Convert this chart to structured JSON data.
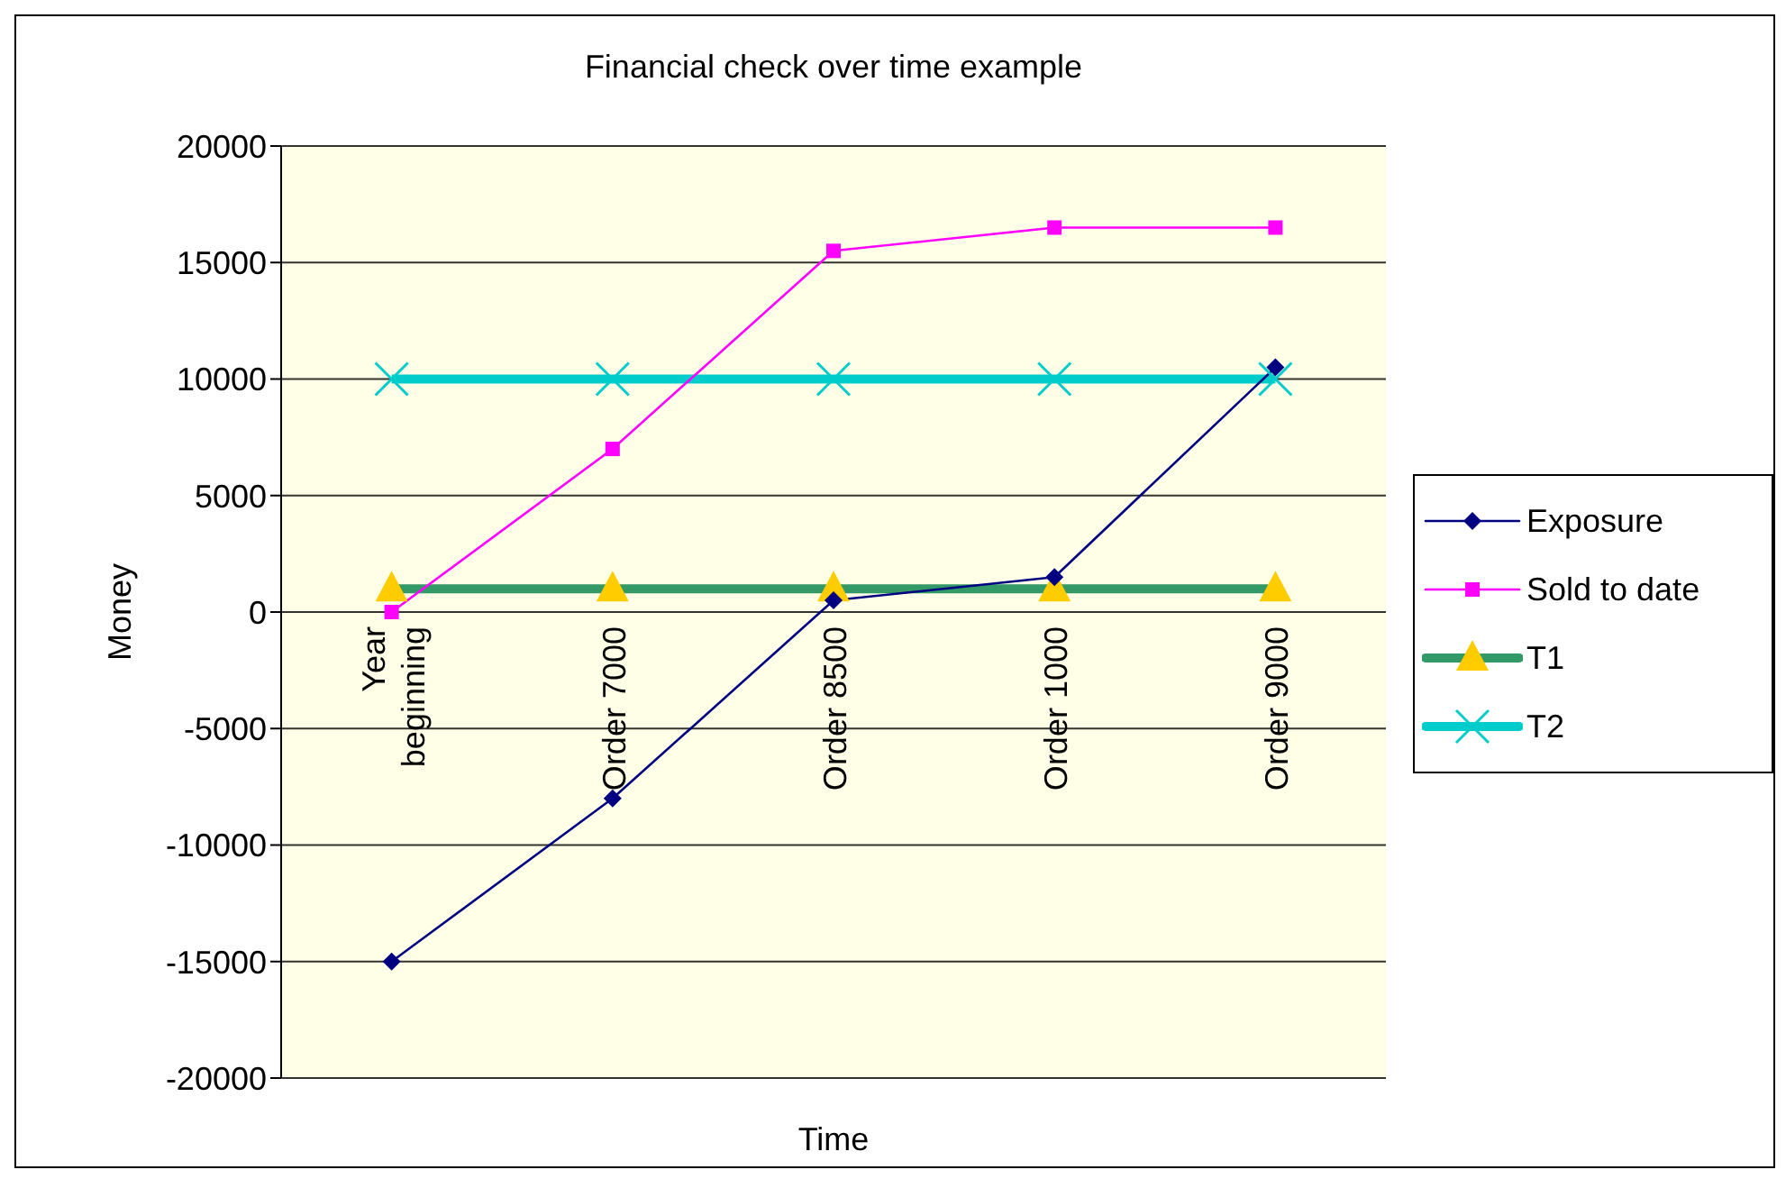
{
  "chart_data": {
    "type": "line",
    "title": "Financial check over time example",
    "xlabel": "Time",
    "ylabel": "Money",
    "categories": [
      "Year beginning",
      "Order 7000",
      "Order 8500",
      "Order 1000",
      "Order 9000"
    ],
    "series": [
      {
        "name": "Exposure",
        "color": "#000080",
        "marker": "diamond",
        "values": [
          -15000,
          -8000,
          500,
          1500,
          10500
        ]
      },
      {
        "name": "Sold to date",
        "color": "#ff00ff",
        "marker": "square",
        "values": [
          0,
          7000,
          15500,
          16500,
          16500
        ]
      },
      {
        "name": "T1",
        "color": "#339966",
        "marker": "triangle",
        "colors": [
          "#ffcc00",
          "#ffcc00",
          "#ffcc00",
          "#ffcc00",
          "#ffcc00"
        ],
        "values": [
          1000,
          1000,
          1000,
          1000,
          1000
        ]
      },
      {
        "name": "T2",
        "color": "#00cccc",
        "marker": "cross",
        "values": [
          10000,
          10000,
          10000,
          10000,
          10000
        ]
      }
    ],
    "ylim": [
      -20000,
      20000
    ],
    "yticks": [
      -20000,
      -15000,
      -10000,
      -5000,
      0,
      5000,
      10000,
      15000,
      20000
    ],
    "grid": "y",
    "legend": "right"
  }
}
